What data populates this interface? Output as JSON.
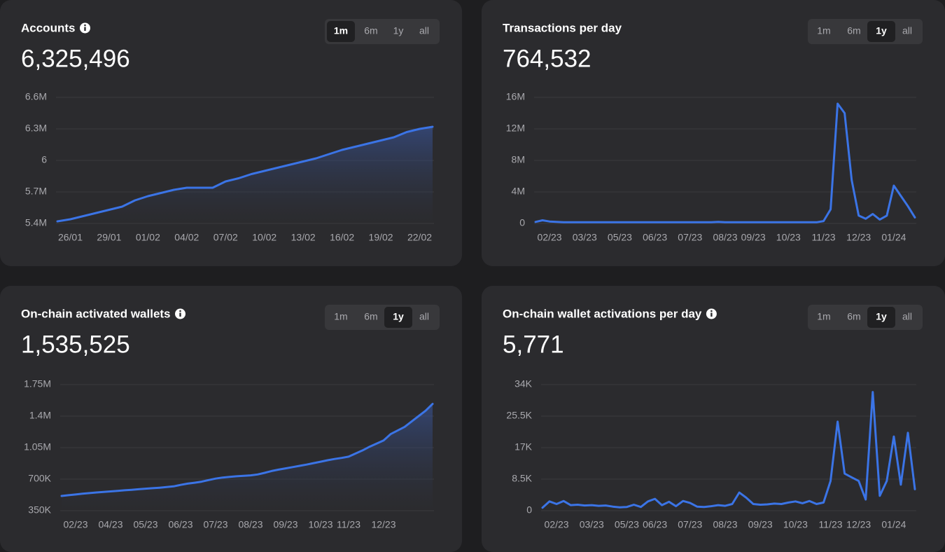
{
  "chart_data": [
    {
      "type": "area",
      "title": "Accounts",
      "info_icon": true,
      "headline": "6,325,496",
      "ranges": [
        "1m",
        "6m",
        "1y",
        "all"
      ],
      "selected_range": "1m",
      "color": "#3b74e6",
      "grid": true,
      "categories": [
        null,
        "26/01",
        null,
        null,
        "29/01",
        null,
        null,
        "01/02",
        null,
        null,
        "04/02",
        null,
        null,
        "07/02",
        null,
        null,
        "10/02",
        null,
        null,
        "13/02",
        null,
        null,
        "16/02",
        null,
        null,
        "19/02",
        null,
        null,
        "22/02",
        null
      ],
      "values": [
        5.42,
        5.44,
        5.47,
        5.5,
        5.53,
        5.56,
        5.62,
        5.66,
        5.69,
        5.72,
        5.74,
        5.74,
        5.74,
        5.8,
        5.83,
        5.87,
        5.9,
        5.93,
        5.96,
        5.99,
        6.02,
        6.06,
        6.1,
        6.13,
        6.16,
        6.19,
        6.22,
        6.27,
        6.3,
        6.32
      ],
      "ylim": [
        5.4,
        6.6
      ],
      "yticks": [
        {
          "value": 5.4,
          "label": "5.4M"
        },
        {
          "value": 5.7,
          "label": "5.7M"
        },
        6,
        {
          "value": 6.3,
          "label": "6.3M"
        },
        {
          "value": 6.6,
          "label": "6.6M"
        }
      ]
    },
    {
      "type": "line",
      "title": "Transactions per day",
      "info_icon": false,
      "headline": "764,532",
      "ranges": [
        "1m",
        "6m",
        "1y",
        "all"
      ],
      "selected_range": "1y",
      "color": "#3b74e6",
      "grid": true,
      "categories": [
        null,
        null,
        "02/23",
        null,
        null,
        null,
        null,
        "03/23",
        null,
        null,
        null,
        null,
        "05/23",
        null,
        null,
        null,
        null,
        "06/23",
        null,
        null,
        null,
        null,
        "07/23",
        null,
        null,
        null,
        null,
        "08/23",
        null,
        null,
        null,
        "09/23",
        null,
        null,
        null,
        null,
        "10/23",
        null,
        null,
        null,
        null,
        "11/23",
        null,
        null,
        null,
        null,
        "12/23",
        null,
        null,
        null,
        null,
        "01/24",
        null,
        null,
        null
      ],
      "values": [
        0.2,
        0.4,
        0.25,
        0.2,
        0.15,
        0.15,
        0.15,
        0.15,
        0.15,
        0.15,
        0.15,
        0.15,
        0.15,
        0.15,
        0.15,
        0.15,
        0.15,
        0.15,
        0.15,
        0.15,
        0.15,
        0.15,
        0.15,
        0.15,
        0.15,
        0.15,
        0.2,
        0.15,
        0.15,
        0.15,
        0.15,
        0.15,
        0.15,
        0.15,
        0.15,
        0.15,
        0.15,
        0.15,
        0.15,
        0.15,
        0.15,
        0.3,
        1.8,
        15.2,
        14,
        5.5,
        1,
        0.6,
        1.2,
        0.5,
        1,
        4.8,
        3.5,
        2.2,
        0.76
      ],
      "ylim": [
        0,
        16
      ],
      "yticks": [
        0,
        {
          "value": 4,
          "label": "4M"
        },
        {
          "value": 8,
          "label": "8M"
        },
        {
          "value": 12,
          "label": "12M"
        },
        {
          "value": 16,
          "label": "16M"
        }
      ]
    },
    {
      "type": "area",
      "title": "On-chain activated wallets",
      "info_icon": true,
      "headline": "1,535,525",
      "ranges": [
        "1m",
        "6m",
        "1y",
        "all"
      ],
      "selected_range": "1y",
      "color": "#3b74e6",
      "grid": true,
      "categories": [
        null,
        null,
        "02/23",
        null,
        null,
        null,
        null,
        "04/23",
        null,
        null,
        null,
        null,
        "05/23",
        null,
        null,
        null,
        null,
        "06/23",
        null,
        null,
        null,
        null,
        "07/23",
        null,
        null,
        null,
        null,
        "08/23",
        null,
        null,
        null,
        null,
        "09/23",
        null,
        null,
        null,
        null,
        "10/23",
        null,
        null,
        null,
        "11/23",
        null,
        null,
        null,
        null,
        "12/23",
        null,
        null,
        null,
        null,
        null,
        null,
        null
      ],
      "values": [
        513000,
        522000,
        530000,
        538000,
        545000,
        552000,
        558000,
        564000,
        570000,
        576000,
        582000,
        588000,
        594000,
        600000,
        605000,
        612000,
        620000,
        636000,
        650000,
        660000,
        672000,
        690000,
        706000,
        718000,
        726000,
        732000,
        737000,
        742000,
        752000,
        770000,
        790000,
        806000,
        820000,
        834000,
        848000,
        862000,
        878000,
        894000,
        910000,
        924000,
        936000,
        950000,
        985000,
        1020000,
        1060000,
        1095000,
        1130000,
        1200000,
        1240000,
        1280000,
        1340000,
        1400000,
        1460000,
        1535525
      ],
      "ylim": [
        350000,
        1750000
      ],
      "yticks": [
        {
          "value": 350000,
          "label": "350K"
        },
        {
          "value": 700000,
          "label": "700K"
        },
        {
          "value": 1050000,
          "label": "1.05M"
        },
        {
          "value": 1400000,
          "label": "1.4M"
        },
        {
          "value": 1750000,
          "label": "1.75M"
        }
      ]
    },
    {
      "type": "line",
      "title": "On-chain wallet activations per day",
      "info_icon": true,
      "headline": "5,771",
      "ranges": [
        "1m",
        "6m",
        "1y",
        "all"
      ],
      "selected_range": "1y",
      "color": "#3b74e6",
      "grid": true,
      "categories": [
        null,
        null,
        "02/23",
        null,
        null,
        null,
        null,
        "03/23",
        null,
        null,
        null,
        null,
        "05/23",
        null,
        null,
        null,
        "06/23",
        null,
        null,
        null,
        null,
        "07/23",
        null,
        null,
        null,
        null,
        "08/23",
        null,
        null,
        null,
        null,
        "09/23",
        null,
        null,
        null,
        null,
        "10/23",
        null,
        null,
        null,
        null,
        "11/23",
        null,
        null,
        null,
        "12/23",
        null,
        null,
        null,
        null,
        "01/24",
        null,
        null,
        null
      ],
      "values": [
        800,
        2500,
        1800,
        2600,
        1500,
        1600,
        1400,
        1500,
        1300,
        1400,
        1100,
        900,
        1000,
        1600,
        1000,
        2500,
        3200,
        1500,
        2400,
        1200,
        2600,
        2100,
        1100,
        1000,
        1200,
        1500,
        1300,
        1800,
        4900,
        3500,
        1800,
        1600,
        1700,
        1900,
        1800,
        2200,
        2500,
        2000,
        2600,
        1800,
        2200,
        8000,
        24000,
        10000,
        9000,
        8000,
        3000,
        32000,
        4000,
        8000,
        20000,
        7000,
        21000,
        5771
      ],
      "ylim": [
        0,
        34000
      ],
      "yticks": [
        0,
        {
          "value": 8500,
          "label": "8.5K"
        },
        {
          "value": 17000,
          "label": "17K"
        },
        {
          "value": 25500,
          "label": "25.5K"
        },
        {
          "value": 34000,
          "label": "34K"
        }
      ]
    }
  ]
}
